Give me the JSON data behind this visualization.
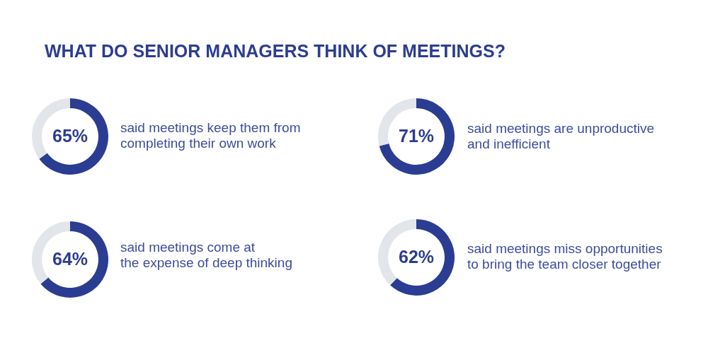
{
  "chart_data": [
    {
      "type": "other",
      "title": "WHAT DO SENIOR MANAGERS THINK OF MEETINGS?"
    },
    {
      "type": "donut",
      "title": "said meetings keep them from\ncompleting their own work",
      "categories": [
        null,
        null
      ],
      "values": [
        65,
        35
      ],
      "colors": [
        "#2b3d92",
        "#e2e6ea"
      ],
      "value_labels": [
        "65%",
        null
      ]
    },
    {
      "type": "donut",
      "title": "said meetings are unproductive\nand inefficient",
      "categories": [
        null,
        null
      ],
      "values": [
        71,
        29
      ],
      "colors": [
        "#2b3d92",
        "#e2e6ea"
      ],
      "value_labels": [
        "71%",
        null
      ]
    },
    {
      "type": "donut",
      "title": "said meetings come at\nthe expense of deep thinking",
      "categories": [
        null,
        null
      ],
      "values": [
        64,
        36
      ],
      "colors": [
        "#2b3d92",
        "#e2e6ea"
      ],
      "value_labels": [
        "64%",
        null
      ]
    },
    {
      "type": "donut",
      "title": "said meetings miss opportunities\nto bring the team closer together",
      "categories": [
        null,
        null
      ],
      "values": [
        62,
        38
      ],
      "colors": [
        "#2b3d92",
        "#e2e6ea"
      ],
      "value_labels": [
        "62%",
        null
      ]
    }
  ]
}
